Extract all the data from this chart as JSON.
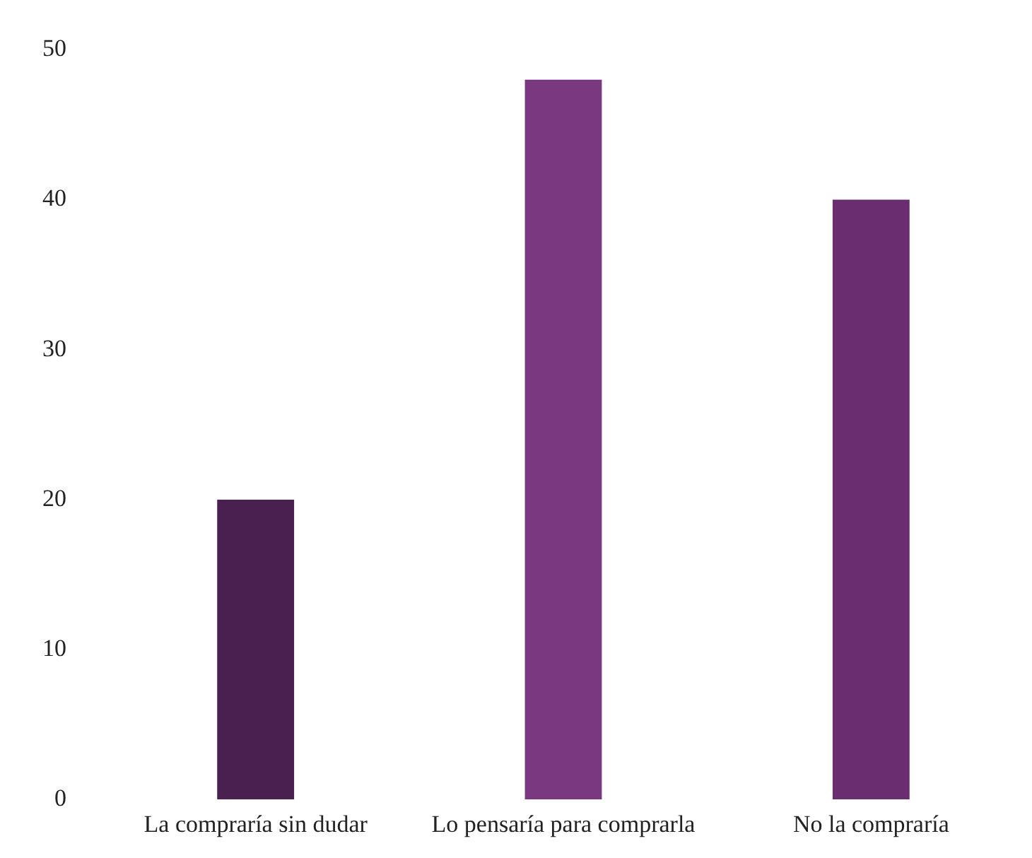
{
  "chart_data": {
    "type": "bar",
    "categories": [
      "La compraría sin dudar",
      "Lo pensaría para comprarla",
      "No la compraría"
    ],
    "values": [
      20,
      48,
      40
    ],
    "colors": [
      "#4a2050",
      "#7a3880",
      "#6a2e70"
    ],
    "ylim": [
      0,
      50
    ],
    "yticks": [
      0,
      10,
      20,
      30,
      40,
      50
    ],
    "grid": false,
    "legend": false
  }
}
